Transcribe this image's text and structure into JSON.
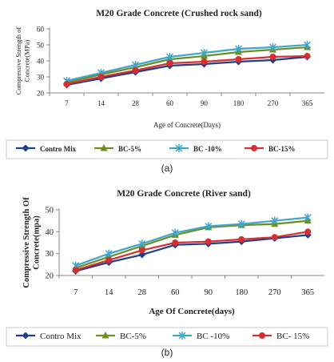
{
  "chart_data": [
    {
      "type": "line",
      "title": "M20 Grade Concrete (Crushed rock sand)",
      "xlabel": "Age of Concrete(Days)",
      "ylabel": "Compressive Strength of Concrete(MPa)",
      "categories": [
        "7",
        "14",
        "28",
        "60",
        "90",
        "180",
        "270",
        "365"
      ],
      "ylim": [
        20,
        60
      ],
      "yticks": [
        20,
        30,
        40,
        50,
        60
      ],
      "grid": false,
      "legend": "bottom",
      "series": [
        {
          "name": "Contro Mix",
          "color": "#1f3f8a",
          "marker": "diamond",
          "values": [
            25,
            29,
            33,
            37,
            38,
            39.5,
            40.5,
            42.5
          ]
        },
        {
          "name": "BC-5%",
          "color": "#6b8e23",
          "marker": "triangle",
          "values": [
            26.5,
            31.5,
            36,
            41,
            43,
            45.5,
            47,
            48.5
          ]
        },
        {
          "name": "BC -10%",
          "color": "#3fa6c7",
          "marker": "star",
          "values": [
            27.5,
            32.5,
            37.5,
            42.5,
            45,
            47.5,
            48.5,
            50
          ]
        },
        {
          "name": "BC-15%",
          "color": "#d62f2f",
          "marker": "circle",
          "values": [
            25.5,
            30,
            34,
            38.5,
            39.5,
            41,
            42.5,
            43
          ]
        }
      ],
      "caption": "(a)"
    },
    {
      "type": "line",
      "title": "M20 Grade Concrete (River sand)",
      "xlabel": "Age Of Concrete(days)",
      "ylabel": "Compressive Strength Of Concrete(mpa)",
      "categories": [
        "7",
        "14",
        "28",
        "60",
        "90",
        "180",
        "270",
        "365"
      ],
      "ylim": [
        20,
        50
      ],
      "yticks": [
        20,
        30,
        40,
        50
      ],
      "grid": false,
      "legend": "bottom",
      "series": [
        {
          "name": "Contro Mix",
          "color": "#1f3f8a",
          "marker": "diamond",
          "values": [
            22,
            26,
            29.5,
            34,
            34.5,
            35.5,
            37,
            38.5
          ]
        },
        {
          "name": "BC-5%",
          "color": "#6b8e23",
          "marker": "triangle",
          "values": [
            23.5,
            28.5,
            33.5,
            38.5,
            42,
            43,
            43.5,
            45
          ]
        },
        {
          "name": "BC -10%",
          "color": "#3fa6c7",
          "marker": "star",
          "values": [
            24.5,
            30,
            34.5,
            39.5,
            42.5,
            43.5,
            45,
            46.5
          ]
        },
        {
          "name": "BC- 15%",
          "color": "#d62f2f",
          "marker": "circle",
          "values": [
            22.5,
            27,
            31.5,
            35,
            35.5,
            36.5,
            37.5,
            40
          ]
        }
      ],
      "caption": "(b)"
    }
  ]
}
